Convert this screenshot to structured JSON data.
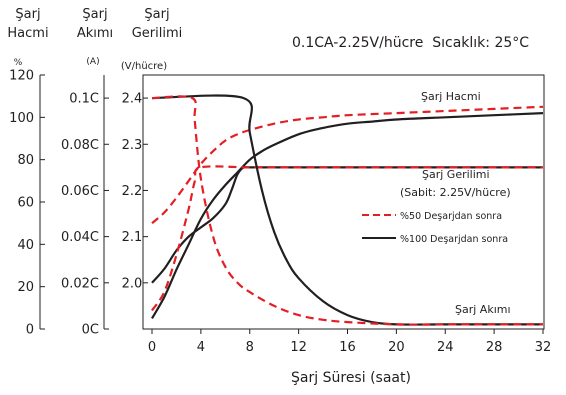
{
  "chart_data": {
    "type": "line",
    "title": "0.1CA-2.25V/hücre  Sıcaklık: 25°C",
    "xlabel": "Şarj Süresi (saat)",
    "x_ticks": [
      "0",
      "4",
      "8",
      "12",
      "16",
      "20",
      "24",
      "28",
      "32"
    ],
    "xlim": [
      0,
      32
    ],
    "axes": [
      {
        "header": [
          "Şarj",
          "Hacmi"
        ],
        "unit": "%",
        "ticks": [
          "0",
          "20",
          "40",
          "60",
          "80",
          "100",
          "120"
        ],
        "range": [
          0,
          120
        ]
      },
      {
        "header": [
          "Şarj",
          "Akımı"
        ],
        "unit": "(A)",
        "ticks": [
          "0C",
          "0.02C",
          "0.04C",
          "0.06C",
          "0.08C",
          "0.1C"
        ],
        "range": [
          0,
          0.11
        ]
      },
      {
        "header": [
          "Şarj",
          "Gerilimi"
        ],
        "unit": "(V/hücre)",
        "ticks": [
          "2.0",
          "2.1",
          "2.2",
          "2.3",
          "2.4"
        ],
        "range": [
          1.9,
          2.45
        ]
      }
    ],
    "legend": {
      "position": "right",
      "items": [
        {
          "label": "%50 Deşarjdan sonra",
          "style": "dashed",
          "color": "#e31e24"
        },
        {
          "label": "%100 Deşarjdan sonra",
          "style": "solid",
          "color": "#231f20"
        }
      ]
    },
    "annotations": {
      "capacity": "Şarj Hacmi",
      "voltage": "Şarj Gerilimi",
      "voltage_note": "(Sabit: 2.25V/hücre)",
      "current": "Şarj Akımı"
    },
    "series": [
      {
        "curve": "Şarj Hacmi",
        "discharge": "%100",
        "axis": "%",
        "x": [
          0,
          1,
          2,
          3,
          4,
          5,
          6,
          7,
          8,
          9,
          10,
          12,
          14,
          16,
          18,
          20,
          24,
          28,
          32
        ],
        "y": [
          5,
          15,
          28,
          40,
          52,
          61,
          68,
          74,
          80,
          84,
          87,
          92,
          95,
          97,
          98,
          99,
          100,
          101,
          102
        ]
      },
      {
        "curve": "Şarj Hacmi",
        "discharge": "%50",
        "axis": "%",
        "x": [
          0,
          1,
          2,
          3,
          4,
          5,
          6,
          7,
          8,
          10,
          12,
          14,
          16,
          20,
          24,
          28,
          32
        ],
        "y": [
          50,
          55,
          62,
          70,
          78,
          84,
          89,
          92,
          94,
          97,
          99,
          100,
          101,
          102,
          103,
          104,
          105
        ]
      },
      {
        "curve": "Şarj Gerilimi",
        "discharge": "%100",
        "axis": "V/hücre",
        "x": [
          0,
          1,
          2,
          3,
          4,
          5,
          6,
          6.5,
          7,
          7.5,
          8,
          12,
          16,
          20,
          24,
          28,
          32
        ],
        "y": [
          2.0,
          2.03,
          2.07,
          2.1,
          2.12,
          2.14,
          2.17,
          2.2,
          2.235,
          2.25,
          2.25,
          2.25,
          2.25,
          2.25,
          2.25,
          2.25,
          2.25
        ]
      },
      {
        "curve": "Şarj Gerilimi",
        "discharge": "%50",
        "axis": "V/hücre",
        "x": [
          0,
          1,
          2,
          3,
          3.5,
          4,
          8,
          12,
          16,
          20,
          24,
          28,
          32
        ],
        "y": [
          1.94,
          1.98,
          2.06,
          2.16,
          2.22,
          2.25,
          2.25,
          2.25,
          2.25,
          2.25,
          2.25,
          2.25,
          2.25
        ]
      },
      {
        "curve": "Şarj Akımı",
        "discharge": "%100",
        "axis": "A",
        "x": [
          0,
          7.5,
          8,
          9,
          10,
          11,
          12,
          14,
          16,
          18,
          20,
          24,
          28,
          32
        ],
        "y": [
          0.1,
          0.1,
          0.085,
          0.06,
          0.042,
          0.03,
          0.022,
          0.012,
          0.006,
          0.003,
          0.002,
          0.002,
          0.002,
          0.002
        ]
      },
      {
        "curve": "Şarj Akımı",
        "discharge": "%50",
        "axis": "A",
        "x": [
          0,
          3.3,
          3.5,
          4,
          5,
          6,
          7,
          8,
          10,
          12,
          14,
          16,
          20,
          24,
          28,
          32
        ],
        "y": [
          0.1,
          0.1,
          0.09,
          0.065,
          0.04,
          0.027,
          0.02,
          0.016,
          0.01,
          0.006,
          0.004,
          0.003,
          0.002,
          0.002,
          0.002,
          0.002
        ]
      }
    ]
  }
}
